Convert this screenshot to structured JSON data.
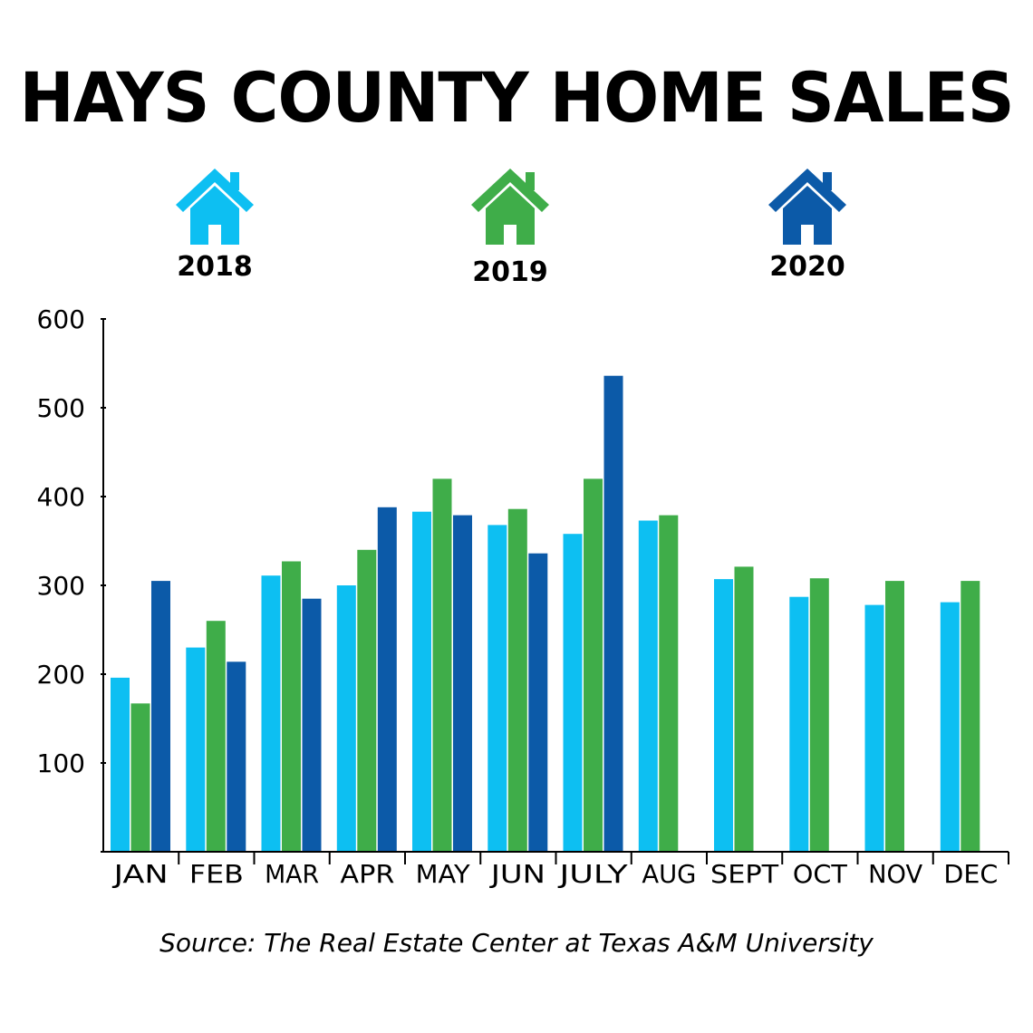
{
  "title": "HAYS COUNTY HOME SALES",
  "legend": [
    {
      "label": "2018",
      "color": "#0dbff2",
      "icon": "house-icon"
    },
    {
      "label": "2019",
      "color": "#3fad49",
      "icon": "house-icon"
    },
    {
      "label": "2020",
      "color": "#0c5aa8",
      "icon": "house-icon"
    }
  ],
  "source": "Source: The Real Estate Center at Texas A&M University",
  "chart_data": {
    "type": "bar",
    "categories": [
      "JAN",
      "FEB",
      "MAR",
      "APR",
      "MAY",
      "JUN",
      "JULY",
      "AUG",
      "SEPT",
      "OCT",
      "NOV",
      "DEC"
    ],
    "series": [
      {
        "name": "2018",
        "color": "#0dbff2",
        "values": [
          196,
          230,
          311,
          300,
          383,
          368,
          358,
          373,
          307,
          287,
          278,
          281
        ]
      },
      {
        "name": "2019",
        "color": "#3fad49",
        "values": [
          167,
          260,
          327,
          340,
          420,
          386,
          420,
          379,
          321,
          308,
          305,
          305
        ]
      },
      {
        "name": "2020",
        "color": "#0c5aa8",
        "values": [
          305,
          214,
          285,
          388,
          379,
          336,
          536,
          null,
          null,
          null,
          null,
          null
        ]
      }
    ],
    "yticks": [
      100,
      200,
      300,
      400,
      500,
      600
    ],
    "ylim": [
      0,
      600
    ],
    "grid": false
  }
}
